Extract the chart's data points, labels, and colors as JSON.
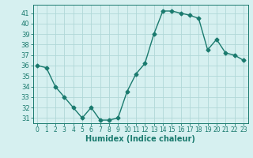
{
  "x": [
    0,
    1,
    2,
    3,
    4,
    5,
    6,
    7,
    8,
    9,
    10,
    11,
    12,
    13,
    14,
    15,
    16,
    17,
    18,
    19,
    20,
    21,
    22,
    23
  ],
  "y": [
    36,
    35.8,
    34,
    33,
    32,
    31,
    32,
    30.8,
    30.8,
    31,
    33.5,
    35.2,
    36.2,
    39,
    41.2,
    41.2,
    41,
    40.8,
    40.5,
    37.5,
    38.5,
    37.2,
    37,
    36.5
  ],
  "xlabel": "Humidex (Indice chaleur)",
  "xlim": [
    -0.5,
    23.5
  ],
  "ylim": [
    30.5,
    41.8
  ],
  "yticks": [
    31,
    32,
    33,
    34,
    35,
    36,
    37,
    38,
    39,
    40,
    41
  ],
  "xticks": [
    0,
    1,
    2,
    3,
    4,
    5,
    6,
    7,
    8,
    9,
    10,
    11,
    12,
    13,
    14,
    15,
    16,
    17,
    18,
    19,
    20,
    21,
    22,
    23
  ],
  "line_color": "#1a7a6e",
  "bg_color": "#d6f0f0",
  "grid_color": "#b0d8d8",
  "marker": "D",
  "marker_size": 2.5,
  "line_width": 1.0
}
